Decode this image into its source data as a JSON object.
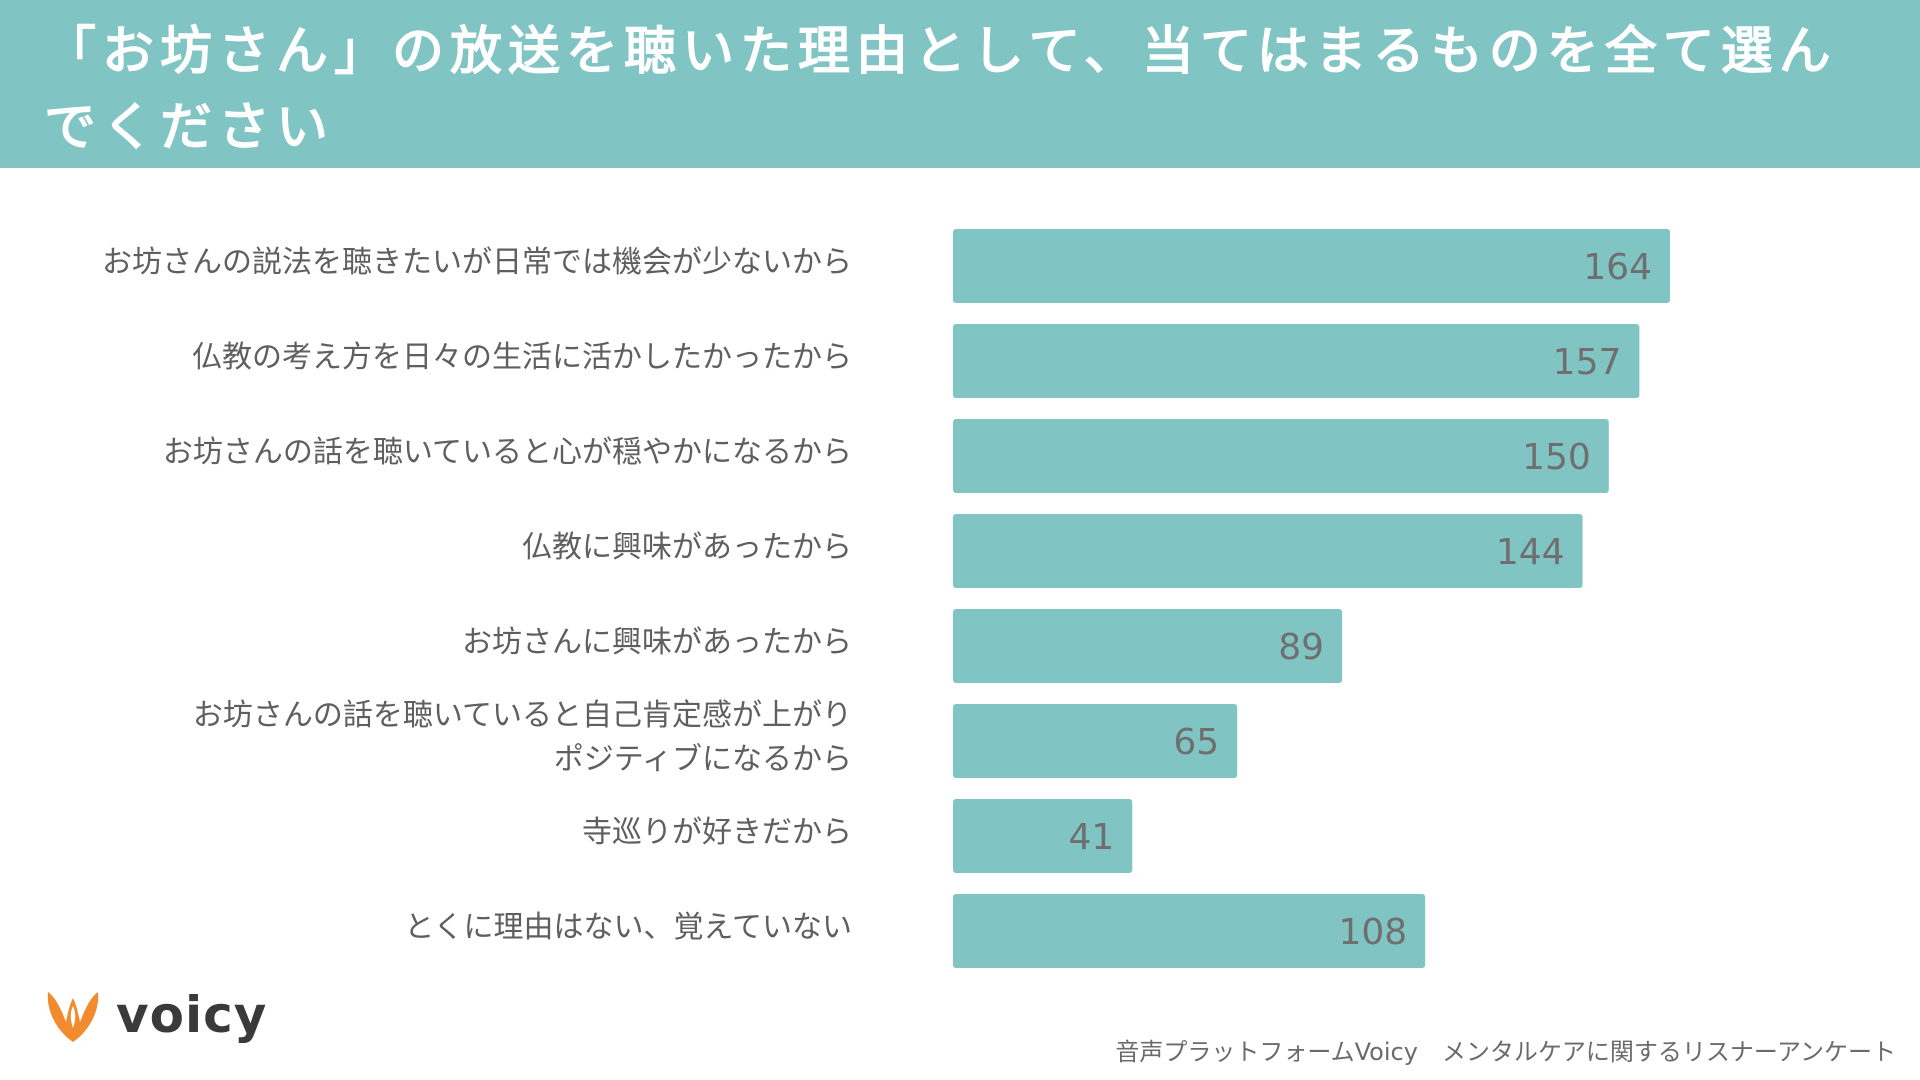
{
  "header": {
    "title": "「お坊さん」の放送を聴いた理由として、当てはまるものを全て選んでください"
  },
  "colors": {
    "accent": "#80c5c4",
    "bar": "#80c5c4",
    "value_text": "#6f6f6f",
    "label_text": "#5f5f5f",
    "logo_orange": "#f28a2e"
  },
  "chart_data": {
    "type": "bar",
    "orientation": "horizontal",
    "categories": [
      "お坊さんの説法を聴きたいが日常では機会が少ないから",
      "仏教の考え方を日々の生活に活かしたかったから",
      "お坊さんの話を聴いていると心が穏やかになるから",
      "仏教に興味があったから",
      "お坊さんに興味があったから",
      "お坊さんの話を聴いていると自己肯定感が上がり\nポジティブになるから",
      "寺巡りが好きだから",
      "とくに理由はない、覚えていない"
    ],
    "values": [
      164,
      157,
      150,
      144,
      89,
      65,
      41,
      108
    ],
    "data_labels": [
      "164",
      "157",
      "150",
      "144",
      "89",
      "65",
      "41",
      "108"
    ],
    "xlim": [
      0,
      164
    ],
    "grid": false,
    "legend": "none"
  },
  "footer": {
    "logo_text": "voicy",
    "logo_icon": "voicy-v-icon",
    "source": "音声プラットフォームVoicy　メンタルケアに関するリスナーアンケート"
  }
}
